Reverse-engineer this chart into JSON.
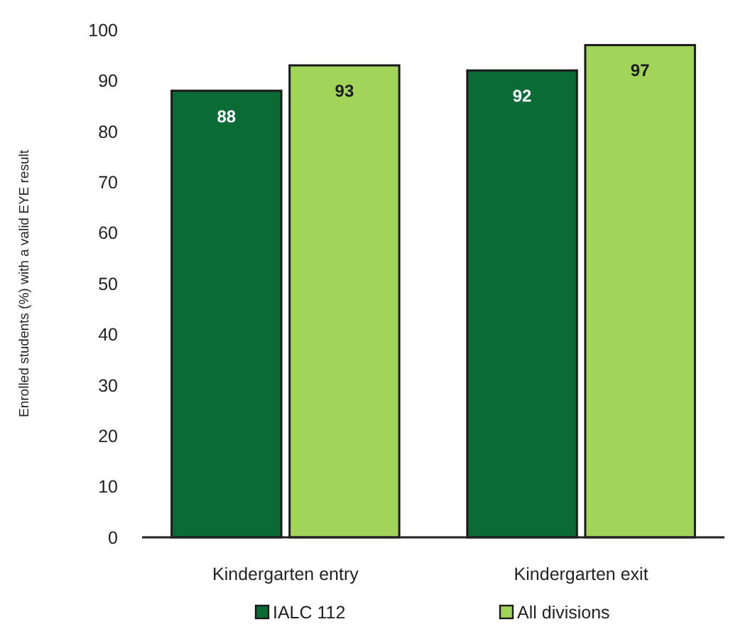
{
  "chart_data": {
    "type": "bar",
    "ylabel": "Enrolled students (%) with a valid EYE result",
    "categories": [
      "Kindergarten entry",
      "Kindergarten exit"
    ],
    "series": [
      {
        "name": "IALC 112",
        "color": "#0b6b35",
        "values": [
          88,
          92
        ]
      },
      {
        "name": "All divisions",
        "color": "#a3d45a",
        "values": [
          93,
          97
        ]
      }
    ],
    "ylim": [
      0,
      100
    ],
    "yticks": [
      0,
      10,
      20,
      30,
      40,
      50,
      60,
      70,
      80,
      90,
      100
    ],
    "grid": false,
    "legend": "bottom",
    "data_labels": true
  }
}
